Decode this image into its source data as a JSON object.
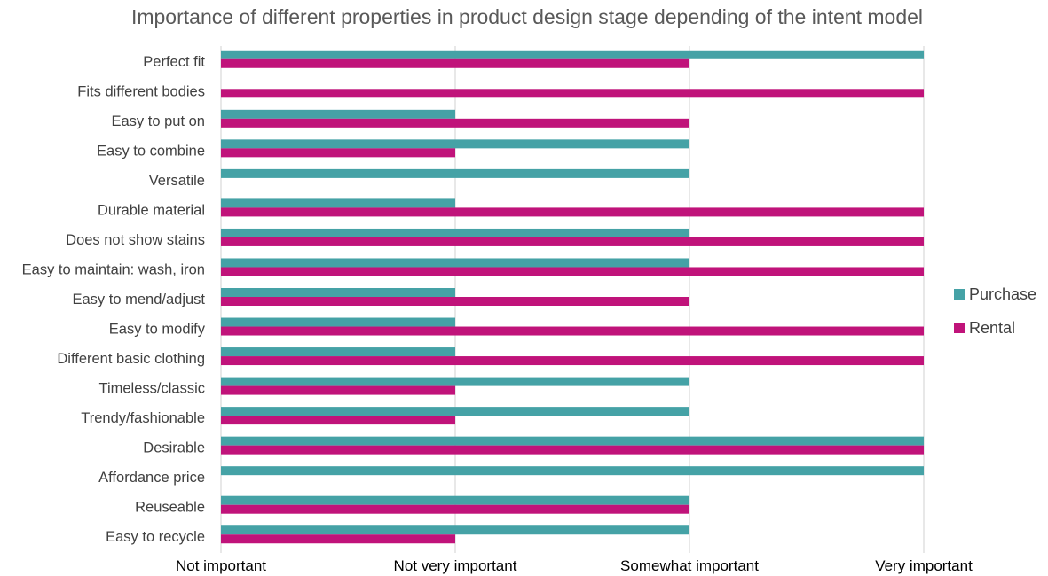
{
  "chart_data": {
    "type": "bar",
    "orientation": "horizontal",
    "title": "Importance of different properties in product design stage depending of the intent model",
    "xlabel": "",
    "ylabel": "",
    "categories": [
      "Perfect fit",
      "Fits different bodies",
      "Easy to put on",
      "Easy to combine",
      "Versatile",
      "Durable material",
      "Does not show stains",
      "Easy to maintain: wash, iron",
      "Easy to mend/adjust",
      "Easy to modify",
      "Different basic clothing",
      "Timeless/classic",
      "Trendy/fashionable",
      "Desirable",
      "Affordance price",
      "Reuseable",
      "Easy to recycle"
    ],
    "x_ticks": [
      "Not important",
      "Not very important",
      "Somewhat important",
      "Very important"
    ],
    "xlim": [
      0,
      3
    ],
    "grid": true,
    "legend_position": "right",
    "series": [
      {
        "name": "Purchase",
        "color": "#45a2a6",
        "values": [
          3,
          0,
          1,
          2,
          2,
          1,
          2,
          2,
          1,
          1,
          1,
          2,
          2,
          3,
          3,
          2,
          2
        ]
      },
      {
        "name": "Rental",
        "color": "#c0137a",
        "values": [
          2,
          3,
          2,
          1,
          0,
          3,
          3,
          3,
          2,
          3,
          3,
          1,
          1,
          3,
          0,
          2,
          1
        ]
      }
    ]
  }
}
